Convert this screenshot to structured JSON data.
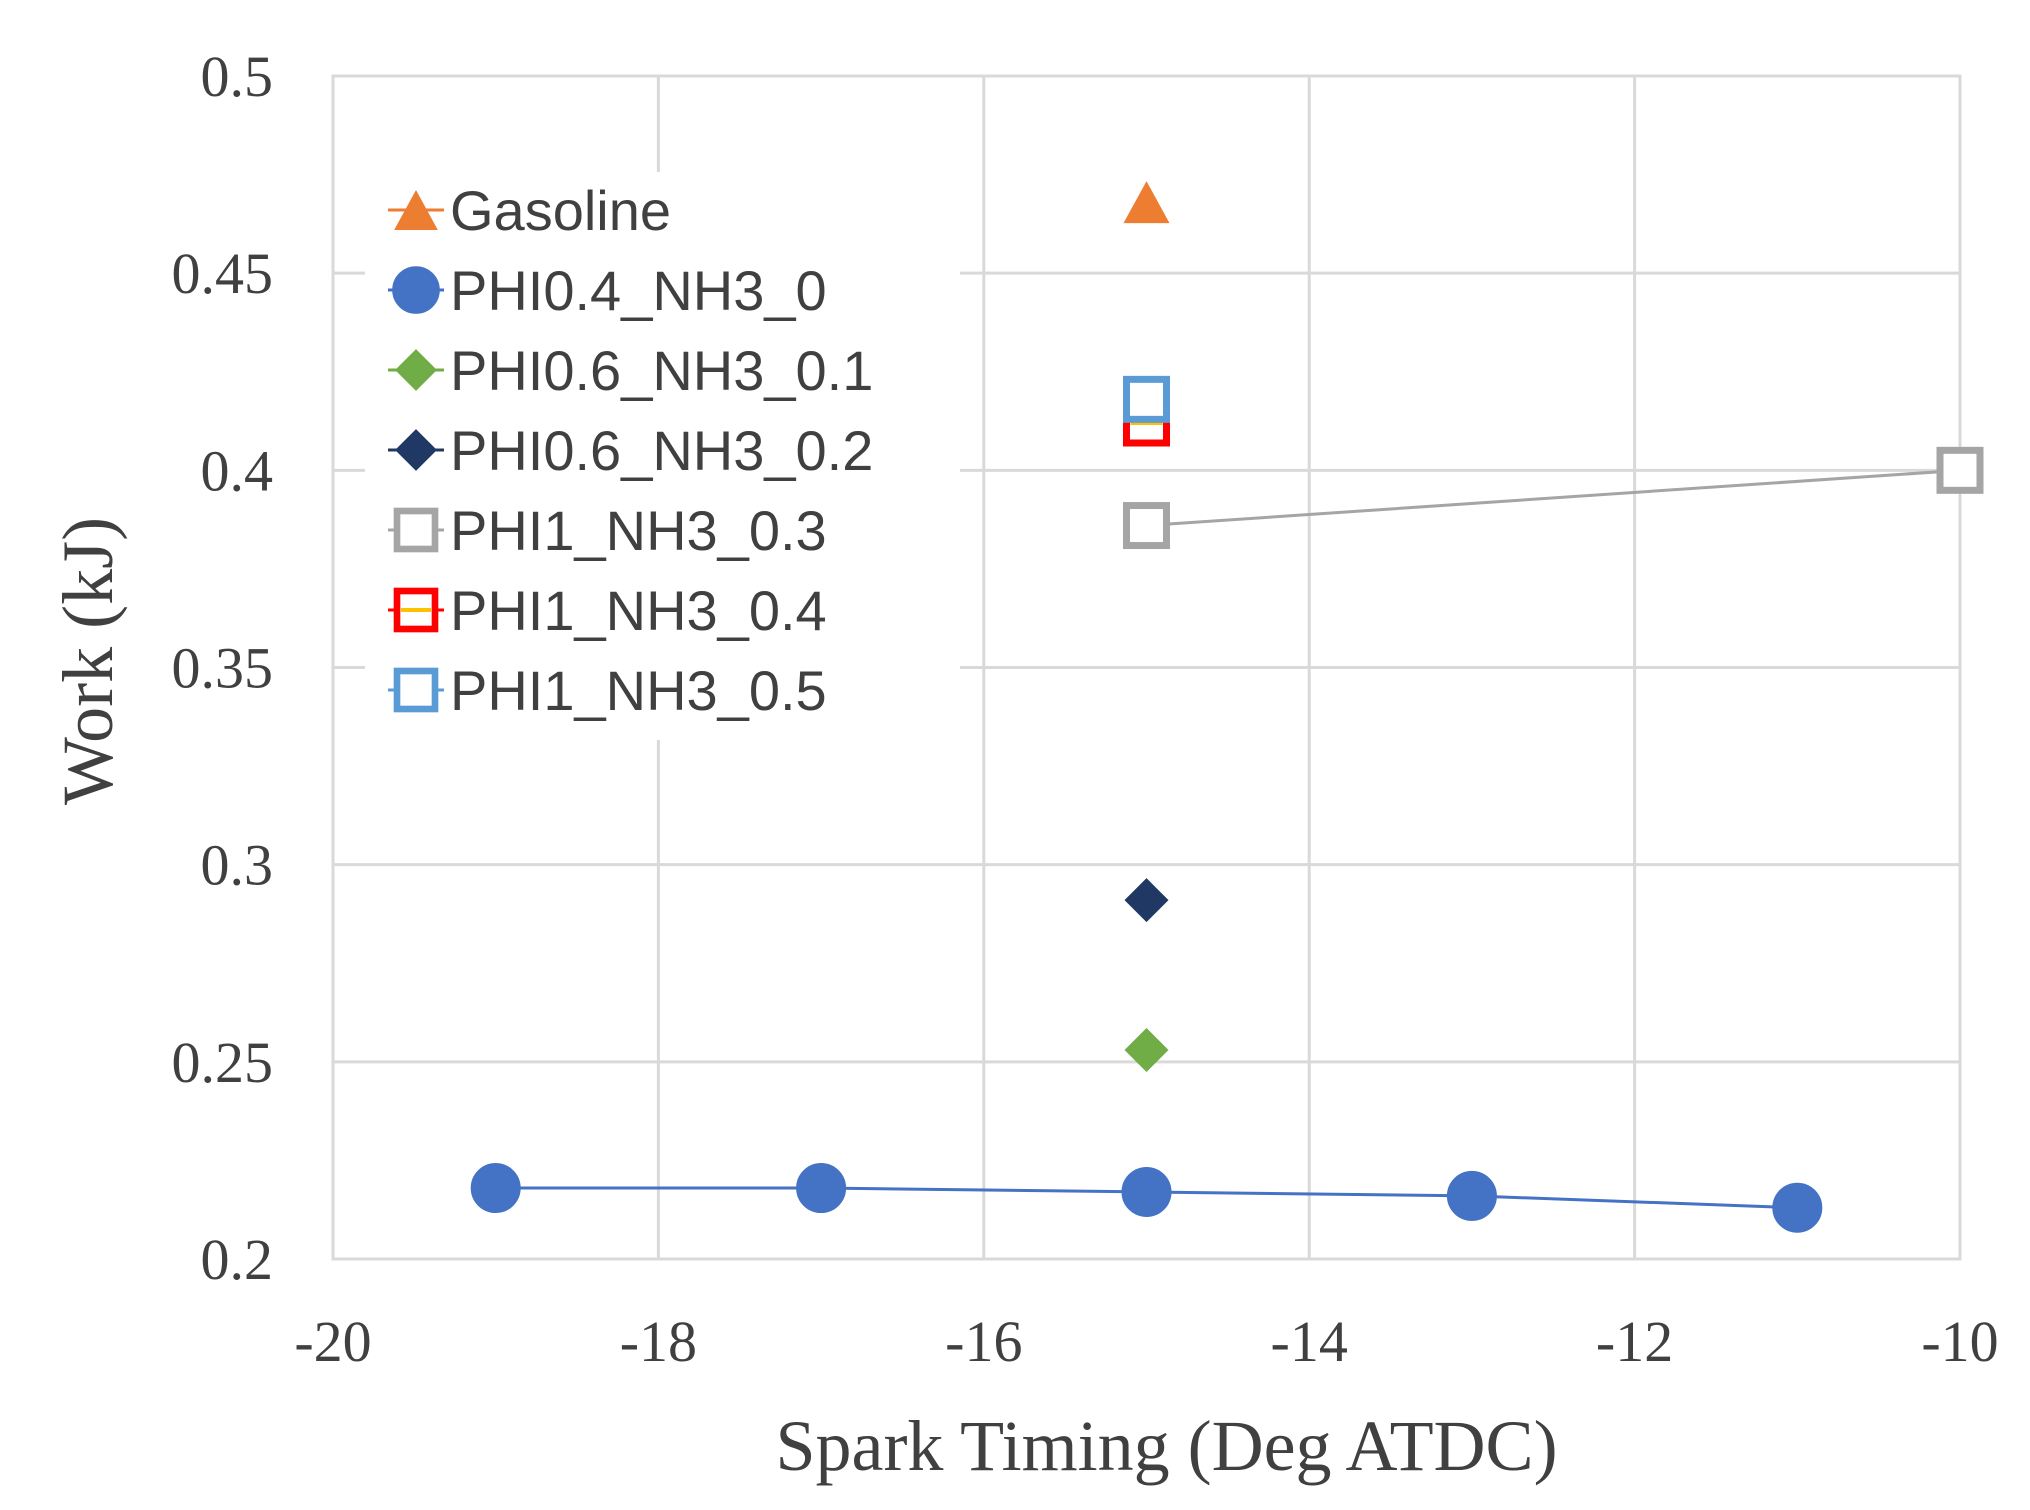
{
  "chart_data": {
    "type": "scatter",
    "title": "",
    "xlabel": "Spark Timing (Deg ATDC)",
    "ylabel": "Work (kJ)",
    "xlim": [
      -20,
      -10
    ],
    "ylim": [
      0.2,
      0.5
    ],
    "x_ticks": [
      "-20",
      "-18",
      "-16",
      "-14",
      "-12",
      "-10"
    ],
    "y_ticks": [
      "0.2",
      "0.25",
      "0.3",
      "0.35",
      "0.4",
      "0.45",
      "0.5"
    ],
    "grid": true,
    "legend_position": "upper-left",
    "series": [
      {
        "name": "Gasoline",
        "marker": "triangle",
        "color": "#ED7D31",
        "line": false,
        "points": [
          {
            "x": -15,
            "y": 0.468
          }
        ]
      },
      {
        "name": "PHI0.4_NH3_0",
        "marker": "circle",
        "color": "#4472C4",
        "line": true,
        "points": [
          {
            "x": -19,
            "y": 0.218
          },
          {
            "x": -17,
            "y": 0.218
          },
          {
            "x": -15,
            "y": 0.217
          },
          {
            "x": -13,
            "y": 0.216
          },
          {
            "x": -11,
            "y": 0.213
          }
        ]
      },
      {
        "name": "PHI0.6_NH3_0.1",
        "marker": "diamond",
        "color": "#70AD47",
        "line": false,
        "points": [
          {
            "x": -15,
            "y": 0.253
          }
        ]
      },
      {
        "name": "PHI0.6_NH3_0.2",
        "marker": "diamond",
        "color": "#203864",
        "line": false,
        "points": [
          {
            "x": -15,
            "y": 0.291
          }
        ]
      },
      {
        "name": "PHI1_NH3_0.3",
        "marker": "square-open",
        "color": "#A5A5A5",
        "line": true,
        "points": [
          {
            "x": -15,
            "y": 0.386
          },
          {
            "x": -10,
            "y": 0.4
          }
        ]
      },
      {
        "name": "PHI1_NH3_0.4",
        "marker": "square-open",
        "color": "#FF0000",
        "inner_color": "#FFC000",
        "line": false,
        "points": [
          {
            "x": -15,
            "y": 0.412
          }
        ]
      },
      {
        "name": "PHI1_NH3_0.5",
        "marker": "square-open",
        "color": "#5B9BD5",
        "line": false,
        "points": [
          {
            "x": -15,
            "y": 0.418
          }
        ]
      }
    ]
  }
}
